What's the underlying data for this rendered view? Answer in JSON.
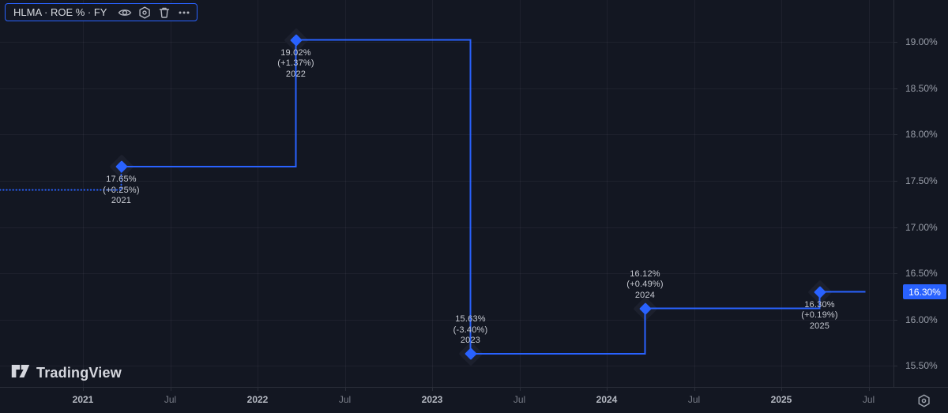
{
  "toolbar": {
    "title": "HLMA · ROE % · FY",
    "icons": [
      "eye",
      "settings-gear",
      "trash",
      "more-dots"
    ]
  },
  "watermark": {
    "text": "TradingView"
  },
  "chart_data": {
    "type": "line",
    "subtype": "step",
    "title": "HLMA · ROE % · FY",
    "x": [
      2021,
      2022,
      2023,
      2024,
      2025
    ],
    "values": [
      17.65,
      19.02,
      15.63,
      16.12,
      16.3
    ],
    "change_pct": [
      0.25,
      1.37,
      -3.4,
      0.49,
      0.19
    ],
    "leadin_value": 17.4,
    "line_color": "#2962ff",
    "grid": true,
    "legend_position": "top-left",
    "ylim": [
      15.25,
      19.25
    ],
    "points": [
      {
        "value_label": "17.65%",
        "change_label": "(+0.25%)",
        "year_label": "2021",
        "label_side": "below"
      },
      {
        "value_label": "19.02%",
        "change_label": "(+1.37%)",
        "year_label": "2022",
        "label_side": "below"
      },
      {
        "value_label": "15.63%",
        "change_label": "(-3.40%)",
        "year_label": "2023",
        "label_side": "above"
      },
      {
        "value_label": "16.12%",
        "change_label": "(+0.49%)",
        "year_label": "2024",
        "label_side": "above"
      },
      {
        "value_label": "16.30%",
        "change_label": "(+0.19%)",
        "year_label": "2025",
        "label_side": "below"
      }
    ],
    "y_axis": {
      "top_value": 19.0,
      "step": 0.5,
      "ticks": [
        "19.00%",
        "18.50%",
        "18.00%",
        "17.50%",
        "17.00%",
        "16.50%",
        "16.00%",
        "15.50%"
      ]
    },
    "x_axis": {
      "ticks": [
        {
          "label": "2021",
          "major": true
        },
        {
          "label": "Jul",
          "major": false
        },
        {
          "label": "2022",
          "major": true
        },
        {
          "label": "Jul",
          "major": false
        },
        {
          "label": "2023",
          "major": true
        },
        {
          "label": "Jul",
          "major": false
        },
        {
          "label": "2024",
          "major": true
        },
        {
          "label": "Jul",
          "major": false
        },
        {
          "label": "2025",
          "major": true
        },
        {
          "label": "Jul",
          "major": false
        }
      ]
    },
    "last_value_badge": "16.30%"
  }
}
